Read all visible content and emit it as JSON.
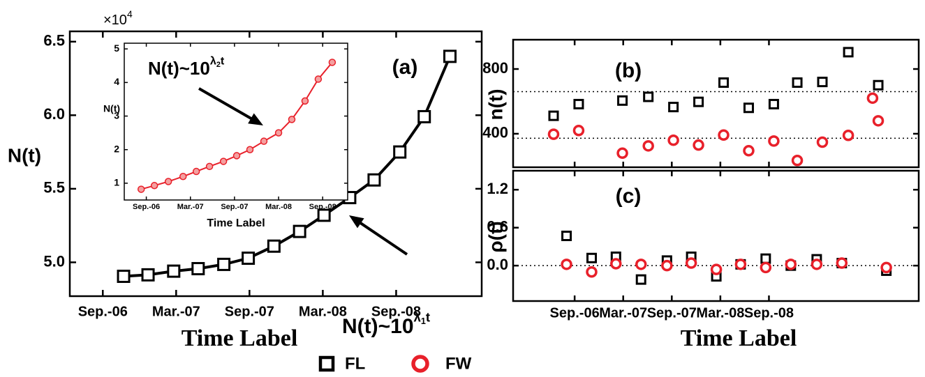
{
  "chart_data": [
    {
      "type": "scatter",
      "panel_label": "(a)",
      "ylabel": "N(t)",
      "xlabel": "Time Label",
      "axis_multiplier": {
        "base": "×10",
        "exponent": "4"
      },
      "annotation": {
        "base": "N(t)~10",
        "exponent": "λ",
        "exponent_subscript": "1",
        "exponent_tail": "t"
      },
      "xlim": [
        -2.7,
        31.0
      ],
      "ylim": [
        4.77,
        6.57
      ],
      "xticks": [
        {
          "value": 0,
          "label": "Sep.-06"
        },
        {
          "value": 6,
          "label": "Mar.-07"
        },
        {
          "value": 12,
          "label": "Sep.-07"
        },
        {
          "value": 18,
          "label": "Mar.-08"
        },
        {
          "value": 24,
          "label": "Sep.-08"
        }
      ],
      "yticks": [
        {
          "value": 5,
          "label": "5.0"
        },
        5.5,
        {
          "value": 6,
          "label": "6.0"
        },
        6.5
      ],
      "series": [
        {
          "name": "FL",
          "marker": "square",
          "color": "#000000",
          "fit_curve": true,
          "x": [
            1.7,
            3.7,
            5.8,
            7.8,
            9.9,
            11.9,
            14.0,
            16.1,
            18.1,
            20.2,
            22.2,
            24.3,
            26.3,
            28.4
          ],
          "values": [
            4.905,
            4.915,
            4.94,
            4.957,
            4.986,
            5.028,
            5.11,
            5.21,
            5.32,
            5.44,
            5.56,
            5.75,
            5.99,
            6.4
          ]
        }
      ]
    },
    {
      "type": "scatter",
      "ylabel": "N(t)",
      "xlabel": "Time Label",
      "annotation": {
        "base": "N(t)~10",
        "exponent": "λ",
        "exponent_subscript": "2",
        "exponent_tail": "t"
      },
      "xlim": [
        -3.0,
        27.4
      ],
      "ylim": [
        0.5,
        5.17
      ],
      "xticks": [
        {
          "value": 0,
          "label": "Sep.-06"
        },
        {
          "value": 6,
          "label": "Mar.-07"
        },
        {
          "value": 12,
          "label": "Sep.-07"
        },
        {
          "value": 18,
          "label": "Mar.-08"
        },
        {
          "value": 24,
          "label": "Sep.-08"
        }
      ],
      "yticks": [
        1,
        2,
        3,
        4,
        5
      ],
      "series": [
        {
          "marker": "circle",
          "color": "#e8202a",
          "fit_curve": true,
          "x": [
            -0.7,
            1.1,
            3.0,
            5.0,
            6.8,
            8.6,
            10.5,
            12.3,
            14.1,
            16.0,
            18.0,
            19.8,
            21.6,
            23.4,
            25.3
          ],
          "values": [
            0.82,
            0.93,
            1.05,
            1.2,
            1.35,
            1.5,
            1.65,
            1.82,
            2.0,
            2.25,
            2.5,
            2.9,
            3.45,
            4.1,
            4.6
          ]
        }
      ]
    },
    {
      "type": "scatter",
      "panel_label": "(b)",
      "ylabel": "n(t)",
      "xlim": [
        -7.6,
        42.5
      ],
      "ylim": [
        193,
        981
      ],
      "yticks": [
        400,
        800
      ],
      "reference_lines": [
        660,
        372
      ],
      "series": [
        {
          "name": "FL",
          "marker": "square",
          "color": "#000000",
          "x": [
            -2.6,
            0.5,
            5.9,
            9.1,
            12.2,
            15.3,
            18.4,
            21.5,
            24.6,
            27.5,
            30.6,
            33.8,
            37.5
          ],
          "values": [
            511,
            583,
            605,
            628,
            565,
            597,
            716,
            560,
            583,
            716,
            720,
            904,
            700
          ]
        },
        {
          "name": "FW",
          "marker": "circle",
          "color": "#e8202a",
          "x": [
            -2.6,
            0.5,
            5.9,
            9.1,
            12.2,
            15.3,
            18.4,
            21.5,
            24.6,
            27.5,
            30.6,
            33.8,
            36.8,
            37.5
          ],
          "values": [
            397,
            420,
            280,
            325,
            360,
            330,
            392,
            295,
            355,
            235,
            348,
            390,
            620,
            480
          ]
        }
      ]
    },
    {
      "type": "scatter",
      "panel_label": "(c)",
      "ylabel": "ρ(t)",
      "xlabel": "Time Label",
      "xlim": [
        -7.6,
        42.5
      ],
      "ylim": [
        -0.56,
        1.5
      ],
      "xticks": [
        {
          "value": 0,
          "label": "Sep.-06"
        },
        {
          "value": 6,
          "label": "Mar.-07"
        },
        {
          "value": 12,
          "label": "Sep.-07"
        },
        {
          "value": 18,
          "label": "Mar.-08"
        },
        {
          "value": 24,
          "label": "Sep.-08"
        }
      ],
      "yticks": [
        {
          "value": 0,
          "label": "0.0"
        },
        0.6,
        1.2
      ],
      "reference_lines": [
        0
      ],
      "series": [
        {
          "name": "FL",
          "marker": "square",
          "color": "#000000",
          "x": [
            -1.0,
            2.1,
            5.1,
            8.2,
            11.4,
            14.4,
            17.5,
            20.5,
            23.6,
            26.7,
            29.9,
            33.0,
            38.5
          ],
          "values": [
            0.47,
            0.12,
            0.14,
            -0.22,
            0.08,
            0.14,
            -0.17,
            0.02,
            0.11,
            0.0,
            0.1,
            0.04,
            -0.08
          ]
        },
        {
          "name": "FW",
          "marker": "circle",
          "color": "#e8202a",
          "x": [
            -1.0,
            2.1,
            5.1,
            8.2,
            11.4,
            14.4,
            17.5,
            20.5,
            23.6,
            26.7,
            29.9,
            33.0,
            38.5
          ],
          "values": [
            0.02,
            -0.1,
            0.03,
            0.02,
            0.0,
            0.04,
            -0.06,
            0.02,
            -0.03,
            0.02,
            0.02,
            0.04,
            -0.03
          ]
        }
      ]
    }
  ]
}
